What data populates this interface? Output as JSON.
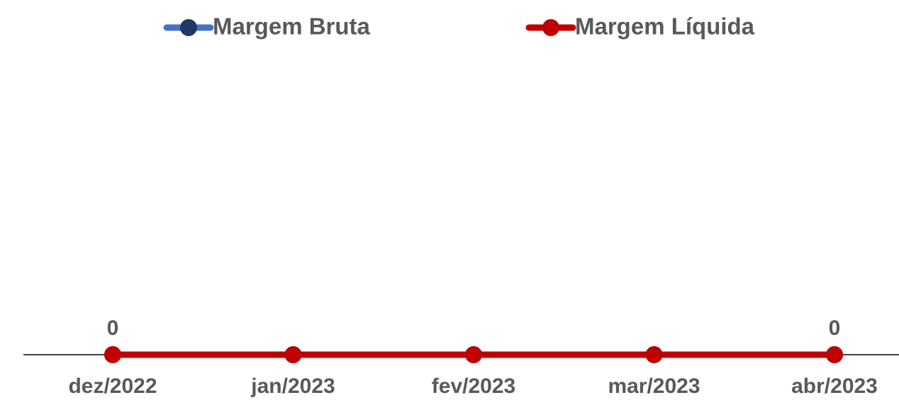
{
  "chart_data": {
    "type": "line",
    "categories": [
      "dez/2022",
      "jan/2023",
      "fev/2023",
      "mar/2023",
      "abr/2023"
    ],
    "series": [
      {
        "name": "Margem Bruta",
        "color": "#4472c4",
        "marker_color": "#203864",
        "values": [
          0,
          0,
          0,
          0,
          0
        ]
      },
      {
        "name": "Margem Líquida",
        "color": "#c00000",
        "marker_color": "#c00000",
        "values": [
          0,
          0,
          0,
          0,
          0
        ]
      }
    ],
    "labeled_points": [
      0,
      4
    ],
    "ylim": [
      0,
      1
    ],
    "legend": "top"
  }
}
